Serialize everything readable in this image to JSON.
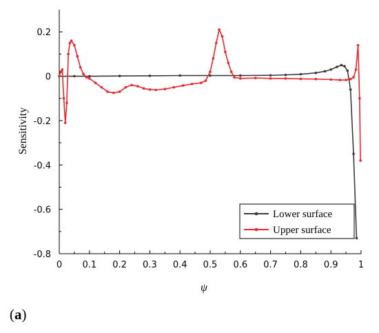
{
  "chart_data": {
    "type": "line",
    "xlabel": "ψ",
    "ylabel": "Sensitivity",
    "xlim": [
      0,
      1
    ],
    "ylim": [
      -0.8,
      0.3
    ],
    "xticks": [
      "0",
      "0.1",
      "0.2",
      "0.3",
      "0.4",
      "0.5",
      "0.6",
      "0.7",
      "0.8",
      "0.9",
      "1"
    ],
    "yticks": [
      "0.2",
      "0",
      "-0.2",
      "-0.4",
      "-0.6",
      "-0.8"
    ],
    "legend_position": "bottom-right",
    "series": [
      {
        "name": "Lower surface",
        "color": "#3a3a3a",
        "points": [
          [
            0,
            0.0
          ],
          [
            0.05,
            0.0
          ],
          [
            0.1,
            0.0
          ],
          [
            0.2,
            0.001
          ],
          [
            0.3,
            0.002
          ],
          [
            0.4,
            0.003
          ],
          [
            0.5,
            0.003
          ],
          [
            0.6,
            0.003
          ],
          [
            0.7,
            0.004
          ],
          [
            0.75,
            0.006
          ],
          [
            0.8,
            0.009
          ],
          [
            0.85,
            0.015
          ],
          [
            0.88,
            0.022
          ],
          [
            0.9,
            0.03
          ],
          [
            0.92,
            0.042
          ],
          [
            0.935,
            0.05
          ],
          [
            0.945,
            0.045
          ],
          [
            0.955,
            0.025
          ],
          [
            0.965,
            -0.06
          ],
          [
            0.975,
            -0.35
          ],
          [
            0.985,
            -0.73
          ]
        ]
      },
      {
        "name": "Upper surface",
        "color": "#e8262b",
        "points": [
          [
            0,
            0.0
          ],
          [
            0.005,
            0.02
          ],
          [
            0.01,
            0.03
          ],
          [
            0.015,
            -0.1
          ],
          [
            0.02,
            -0.21
          ],
          [
            0.025,
            -0.12
          ],
          [
            0.03,
            0.1
          ],
          [
            0.035,
            0.15
          ],
          [
            0.04,
            0.16
          ],
          [
            0.05,
            0.14
          ],
          [
            0.06,
            0.09
          ],
          [
            0.07,
            0.04
          ],
          [
            0.08,
            0.01
          ],
          [
            0.09,
            -0.005
          ],
          [
            0.1,
            -0.01
          ],
          [
            0.12,
            -0.03
          ],
          [
            0.14,
            -0.05
          ],
          [
            0.16,
            -0.07
          ],
          [
            0.18,
            -0.075
          ],
          [
            0.2,
            -0.07
          ],
          [
            0.22,
            -0.05
          ],
          [
            0.24,
            -0.04
          ],
          [
            0.26,
            -0.045
          ],
          [
            0.28,
            -0.055
          ],
          [
            0.3,
            -0.06
          ],
          [
            0.32,
            -0.062
          ],
          [
            0.35,
            -0.058
          ],
          [
            0.38,
            -0.05
          ],
          [
            0.41,
            -0.042
          ],
          [
            0.44,
            -0.035
          ],
          [
            0.47,
            -0.03
          ],
          [
            0.485,
            -0.02
          ],
          [
            0.5,
            0.02
          ],
          [
            0.51,
            0.08
          ],
          [
            0.52,
            0.15
          ],
          [
            0.53,
            0.21
          ],
          [
            0.54,
            0.18
          ],
          [
            0.55,
            0.11
          ],
          [
            0.56,
            0.06
          ],
          [
            0.57,
            0.02
          ],
          [
            0.58,
            -0.005
          ],
          [
            0.6,
            -0.01
          ],
          [
            0.65,
            -0.008
          ],
          [
            0.7,
            -0.01
          ],
          [
            0.75,
            -0.01
          ],
          [
            0.8,
            -0.012
          ],
          [
            0.85,
            -0.013
          ],
          [
            0.9,
            -0.015
          ],
          [
            0.93,
            -0.017
          ],
          [
            0.95,
            -0.017
          ],
          [
            0.965,
            -0.013
          ],
          [
            0.975,
            -0.005
          ],
          [
            0.983,
            0.03
          ],
          [
            0.99,
            0.14
          ],
          [
            0.995,
            -0.1
          ],
          [
            0.998,
            -0.38
          ]
        ]
      }
    ]
  },
  "panel_label": {
    "open": "(",
    "letter": "a",
    "close": ")"
  }
}
